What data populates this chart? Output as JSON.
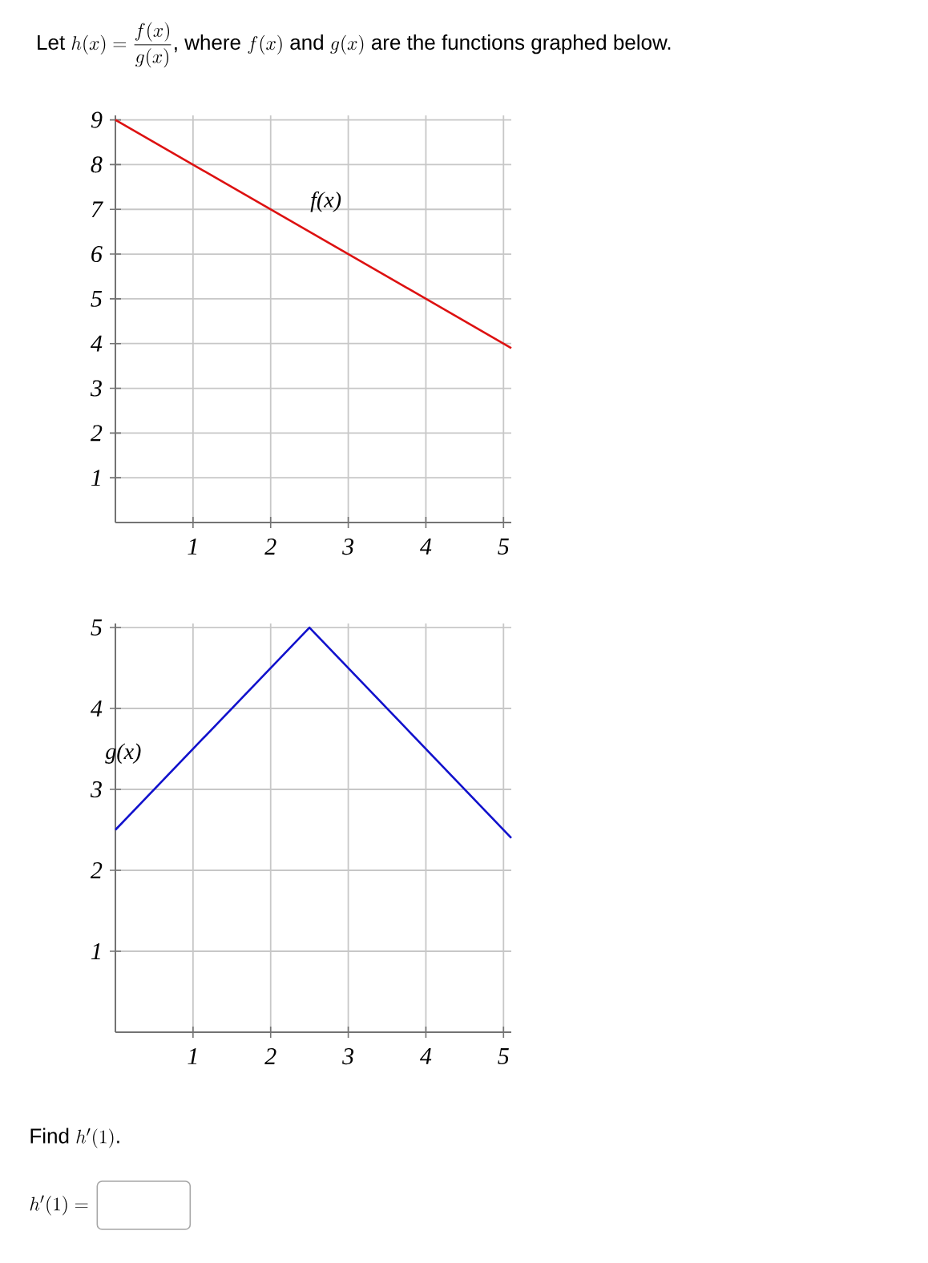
{
  "chart_data": [
    {
      "type": "line",
      "title": "\\text{Let }h(x)=\\dfrac{f(x)}{g(x)}\\text{, where }f(x)\\text{ and }g(x)\\text{ are the functions graphed below.}",
      "series": [
        {
          "name": "f(x)",
          "color": "#dd1111",
          "x": [
            0,
            5.1
          ],
          "values": [
            9,
            3.9
          ]
        }
      ],
      "xlim": [
        0,
        5.1
      ],
      "ylim": [
        0,
        9.1
      ],
      "xticks": [
        1,
        2,
        3,
        4,
        5
      ],
      "yticks": [
        1,
        2,
        3,
        4,
        5,
        6,
        7,
        8,
        9
      ],
      "grid": true
    },
    {
      "type": "line",
      "series": [
        {
          "name": "g(x)",
          "color": "#1111cc",
          "x": [
            0,
            2.5,
            5.1
          ],
          "values": [
            2.5,
            5,
            2.4
          ]
        }
      ],
      "xlim": [
        0,
        5.1
      ],
      "ylim": [
        0,
        5.05
      ],
      "xticks": [
        1,
        2,
        3,
        4,
        5
      ],
      "yticks": [
        1,
        2,
        3,
        4,
        5
      ],
      "grid": true,
      "annotations": [
        "\\text{Find }h'(1)\\text{.}",
        "h'(1) ="
      ]
    }
  ]
}
